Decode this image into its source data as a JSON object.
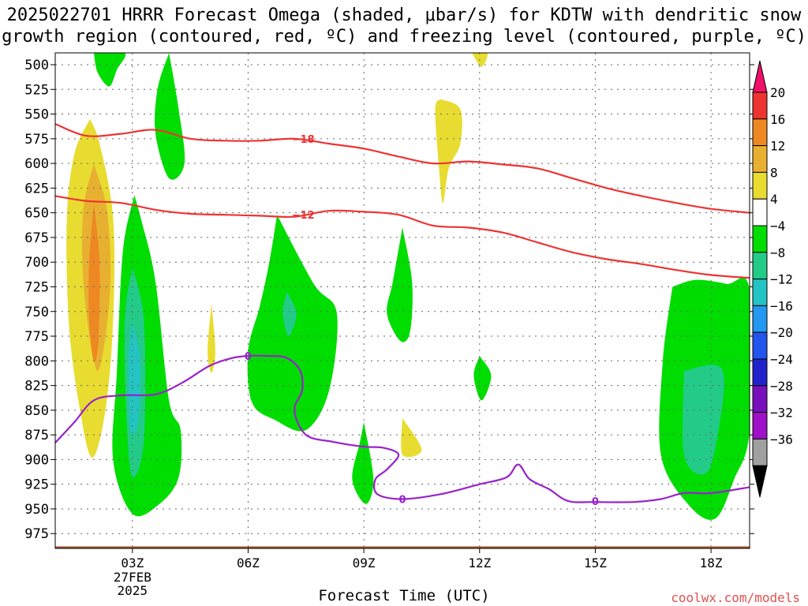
{
  "chart_data": {
    "type": "heatmap",
    "title_line1": "2025022701 HRRR Forecast Omega (shaded, μbar/s) for KDTW with dendritic snow",
    "title_line2": "growth region (contoured, red, ºC) and freezing level (contoured, purple, ºC)",
    "xlabel": "Forecast Time (UTC)",
    "credit": "coolwx.com/models",
    "date_label": [
      "27FEB",
      "2025"
    ],
    "x_range": [
      1,
      19
    ],
    "y_range": [
      488,
      990
    ],
    "x_ticks": [
      {
        "value": 3,
        "label": "03Z"
      },
      {
        "value": 6,
        "label": "06Z"
      },
      {
        "value": 9,
        "label": "09Z"
      },
      {
        "value": 12,
        "label": "12Z"
      },
      {
        "value": 15,
        "label": "15Z"
      },
      {
        "value": 18,
        "label": "18Z"
      }
    ],
    "y_ticks": [
      500,
      525,
      550,
      575,
      600,
      625,
      650,
      675,
      700,
      725,
      750,
      775,
      800,
      825,
      850,
      875,
      900,
      925,
      950,
      975
    ],
    "colorbar": {
      "labels": [
        "20",
        "16",
        "12",
        "8",
        "4",
        "−4",
        "−8",
        "−12",
        "−16",
        "−20",
        "−24",
        "−28",
        "−32",
        "−36"
      ],
      "colors": [
        "#ee1166",
        "#ee3333",
        "#ee8822",
        "#e8b030",
        "#e8dc30",
        "#ffffff",
        "#00dd00",
        "#22cc88",
        "#22c4c4",
        "#2299ee",
        "#2255ee",
        "#2222cc",
        "#7711bb",
        "#a010c8",
        "#a0a0a0",
        "#000000"
      ]
    },
    "omega_areas": [
      {
        "color": "#00dd00",
        "points": [
          [
            2,
            488
          ],
          [
            2.8,
            488
          ],
          [
            2.6,
            505
          ],
          [
            2.4,
            522
          ],
          [
            2.1,
            508
          ],
          [
            2,
            488
          ]
        ]
      },
      {
        "color": "#00dd00",
        "points": [
          [
            3.95,
            488
          ],
          [
            4.2,
            545
          ],
          [
            4.35,
            600
          ],
          [
            3.95,
            615
          ],
          [
            3.6,
            570
          ],
          [
            3.65,
            525
          ],
          [
            3.95,
            488
          ]
        ]
      },
      {
        "color": "#e8dc30",
        "points": [
          [
            1.9,
            555
          ],
          [
            2.15,
            580
          ],
          [
            2.5,
            655
          ],
          [
            2.5,
            760
          ],
          [
            2.3,
            850
          ],
          [
            1.95,
            898
          ],
          [
            1.6,
            840
          ],
          [
            1.35,
            760
          ],
          [
            1.3,
            655
          ],
          [
            1.5,
            590
          ],
          [
            1.9,
            555
          ]
        ]
      },
      {
        "color": "#e8b030",
        "points": [
          [
            2.0,
            600
          ],
          [
            2.35,
            650
          ],
          [
            2.42,
            730
          ],
          [
            2.1,
            810
          ],
          [
            1.75,
            730
          ],
          [
            1.72,
            650
          ],
          [
            2.0,
            600
          ]
        ]
      },
      {
        "color": "#ee8822",
        "points": [
          [
            2.0,
            640
          ],
          [
            2.15,
            700
          ],
          [
            2.12,
            780
          ],
          [
            2.0,
            800
          ],
          [
            1.88,
            760
          ],
          [
            1.88,
            700
          ],
          [
            2.0,
            640
          ]
        ]
      },
      {
        "color": "#00dd00",
        "points": [
          [
            3.05,
            632
          ],
          [
            3.25,
            660
          ],
          [
            3.6,
            720
          ],
          [
            3.95,
            840
          ],
          [
            4.25,
            870
          ],
          [
            4.2,
            918
          ],
          [
            3.7,
            945
          ],
          [
            3.0,
            955
          ],
          [
            2.5,
            900
          ],
          [
            2.6,
            810
          ],
          [
            2.75,
            690
          ],
          [
            3.05,
            632
          ]
        ]
      },
      {
        "color": "#22cc88",
        "points": [
          [
            3.0,
            705
          ],
          [
            3.3,
            760
          ],
          [
            3.3,
            880
          ],
          [
            3.0,
            918
          ],
          [
            2.85,
            860
          ],
          [
            2.8,
            760
          ],
          [
            3.0,
            705
          ]
        ]
      },
      {
        "color": "#22c4c4",
        "points": [
          [
            3.0,
            760
          ],
          [
            3.2,
            800
          ],
          [
            3.15,
            860
          ],
          [
            2.95,
            870
          ],
          [
            2.9,
            800
          ],
          [
            3.0,
            760
          ]
        ]
      },
      {
        "color": "#e8dc30",
        "points": [
          [
            5.05,
            742
          ],
          [
            5.15,
            790
          ],
          [
            5.05,
            812
          ],
          [
            4.95,
            790
          ],
          [
            5.05,
            742
          ]
        ]
      },
      {
        "color": "#00dd00",
        "points": [
          [
            6.75,
            652
          ],
          [
            7.7,
            722
          ],
          [
            8.3,
            752
          ],
          [
            8.1,
            830
          ],
          [
            7.5,
            870
          ],
          [
            6.7,
            860
          ],
          [
            6.1,
            842
          ],
          [
            6.0,
            790
          ],
          [
            6.3,
            745
          ],
          [
            6.55,
            700
          ],
          [
            6.75,
            652
          ]
        ]
      },
      {
        "color": "#22cc88",
        "points": [
          [
            7.0,
            730
          ],
          [
            7.25,
            752
          ],
          [
            7.05,
            775
          ],
          [
            6.9,
            752
          ],
          [
            7.0,
            730
          ]
        ]
      },
      {
        "color": "#00dd00",
        "points": [
          [
            10.0,
            665
          ],
          [
            10.25,
            720
          ],
          [
            10.2,
            770
          ],
          [
            9.95,
            780
          ],
          [
            9.6,
            752
          ],
          [
            9.75,
            720
          ],
          [
            10.0,
            665
          ]
        ]
      },
      {
        "color": "#00dd00",
        "points": [
          [
            9.0,
            862
          ],
          [
            9.25,
            920
          ],
          [
            9.05,
            945
          ],
          [
            8.7,
            920
          ],
          [
            8.9,
            882
          ],
          [
            9.0,
            862
          ]
        ]
      },
      {
        "color": "#e8dc30",
        "points": [
          [
            10.0,
            858
          ],
          [
            10.5,
            890
          ],
          [
            10.0,
            895
          ],
          [
            10.0,
            858
          ]
        ]
      },
      {
        "color": "#e8dc30",
        "points": [
          [
            11.0,
            535
          ],
          [
            11.5,
            545
          ],
          [
            11.5,
            580
          ],
          [
            11.2,
            605
          ],
          [
            11.05,
            640
          ],
          [
            10.95,
            605
          ],
          [
            10.85,
            545
          ],
          [
            11.0,
            535
          ]
        ]
      },
      {
        "color": "#e8dc30",
        "points": [
          [
            11.8,
            488
          ],
          [
            12.2,
            488
          ],
          [
            12.05,
            502
          ],
          [
            11.8,
            488
          ]
        ]
      },
      {
        "color": "#00dd00",
        "points": [
          [
            12.0,
            795
          ],
          [
            12.3,
            815
          ],
          [
            12.05,
            840
          ],
          [
            11.85,
            815
          ],
          [
            12.0,
            795
          ]
        ]
      },
      {
        "color": "#00dd00",
        "points": [
          [
            17.0,
            725
          ],
          [
            17.6,
            718
          ],
          [
            18.4,
            722
          ],
          [
            19.0,
            728
          ],
          [
            19.0,
            870
          ],
          [
            18.6,
            920
          ],
          [
            18.1,
            960
          ],
          [
            17.4,
            945
          ],
          [
            16.7,
            895
          ],
          [
            16.75,
            800
          ],
          [
            17.0,
            725
          ]
        ]
      },
      {
        "color": "#22cc88",
        "points": [
          [
            17.3,
            810
          ],
          [
            18.3,
            810
          ],
          [
            18.1,
            890
          ],
          [
            17.8,
            915
          ],
          [
            17.3,
            895
          ],
          [
            17.3,
            810
          ]
        ]
      }
    ],
    "dendritic_contours": [
      {
        "label": "−18",
        "label_x": 7.1,
        "label_pressure": 575,
        "points": [
          [
            1,
            560
          ],
          [
            1.8,
            572
          ],
          [
            2.7,
            570
          ],
          [
            3.6,
            566
          ],
          [
            4.5,
            575
          ],
          [
            5.4,
            577
          ],
          [
            6.3,
            577
          ],
          [
            7.2,
            575
          ],
          [
            8.1,
            580
          ],
          [
            9.0,
            585
          ],
          [
            9.9,
            593
          ],
          [
            10.8,
            600
          ],
          [
            11.7,
            598
          ],
          [
            12.6,
            601
          ],
          [
            13.5,
            605
          ],
          [
            14.4,
            615
          ],
          [
            15.3,
            625
          ],
          [
            16.2,
            633
          ],
          [
            17.1,
            640
          ],
          [
            18.0,
            646
          ],
          [
            19.0,
            650
          ]
        ]
      },
      {
        "label": "−12",
        "label_x": 7.1,
        "label_pressure": 652,
        "points": [
          [
            1,
            633
          ],
          [
            1.8,
            638
          ],
          [
            2.7,
            640
          ],
          [
            3.6,
            647
          ],
          [
            4.5,
            651
          ],
          [
            5.4,
            652
          ],
          [
            6.3,
            653
          ],
          [
            7.2,
            654
          ],
          [
            8.1,
            648
          ],
          [
            9.0,
            649
          ],
          [
            9.9,
            652
          ],
          [
            10.8,
            663
          ],
          [
            11.7,
            665
          ],
          [
            12.6,
            670
          ],
          [
            13.5,
            680
          ],
          [
            14.4,
            690
          ],
          [
            15.3,
            697
          ],
          [
            16.2,
            702
          ],
          [
            17.1,
            708
          ],
          [
            18.0,
            713
          ],
          [
            19.0,
            716
          ]
        ]
      }
    ],
    "freezing_level": {
      "label": "0",
      "label_positions": [
        [
          6.0,
          795
        ],
        [
          10.0,
          940
        ],
        [
          15.0,
          942
        ]
      ],
      "points": [
        [
          1,
          883
        ],
        [
          1.5,
          862
        ],
        [
          2.0,
          840
        ],
        [
          2.7,
          835
        ],
        [
          3.6,
          834
        ],
        [
          4.3,
          822
        ],
        [
          5.0,
          805
        ],
        [
          5.6,
          797
        ],
        [
          6.0,
          795
        ],
        [
          6.5,
          795
        ],
        [
          7.0,
          797
        ],
        [
          7.35,
          810
        ],
        [
          7.4,
          830
        ],
        [
          7.2,
          850
        ],
        [
          7.5,
          875
        ],
        [
          8.2,
          882
        ],
        [
          9.0,
          887
        ],
        [
          9.5,
          888
        ],
        [
          9.9,
          895
        ],
        [
          9.6,
          910
        ],
        [
          9.3,
          920
        ],
        [
          9.35,
          935
        ],
        [
          10.0,
          940
        ],
        [
          11.0,
          935
        ],
        [
          12.0,
          925
        ],
        [
          12.7,
          918
        ],
        [
          13.0,
          905
        ],
        [
          13.3,
          920
        ],
        [
          13.8,
          930
        ],
        [
          14.3,
          942
        ],
        [
          15.0,
          943
        ],
        [
          16.0,
          943
        ],
        [
          16.7,
          940
        ],
        [
          17.3,
          934
        ],
        [
          18.0,
          934
        ],
        [
          19.0,
          928
        ]
      ]
    },
    "terrain_pressure": 988
  }
}
